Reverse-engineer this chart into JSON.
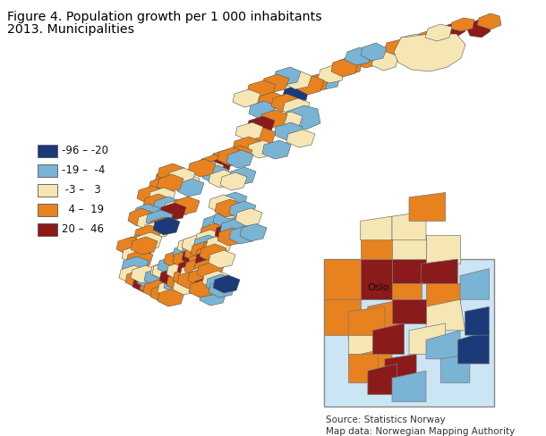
{
  "title_line1": "Figure 4. Population growth per 1 000 inhabitants",
  "title_line2": "2013. Municipalities",
  "legend_labels": [
    "-96 – -20",
    "-19 –  -4",
    " -3 –   3",
    "  4 –  19",
    "20 –  46"
  ],
  "legend_colors": [
    "#1a3a7a",
    "#7ab4d4",
    "#f5e6b4",
    "#e8821e",
    "#8b1a1a"
  ],
  "source_text": "Source: Statistics Norway\nMap data: Norwegian Mapping Authority",
  "oslo_label": "Oslo",
  "bg_color": "#ffffff",
  "figsize": [
    6.1,
    4.88
  ],
  "dpi": 100
}
